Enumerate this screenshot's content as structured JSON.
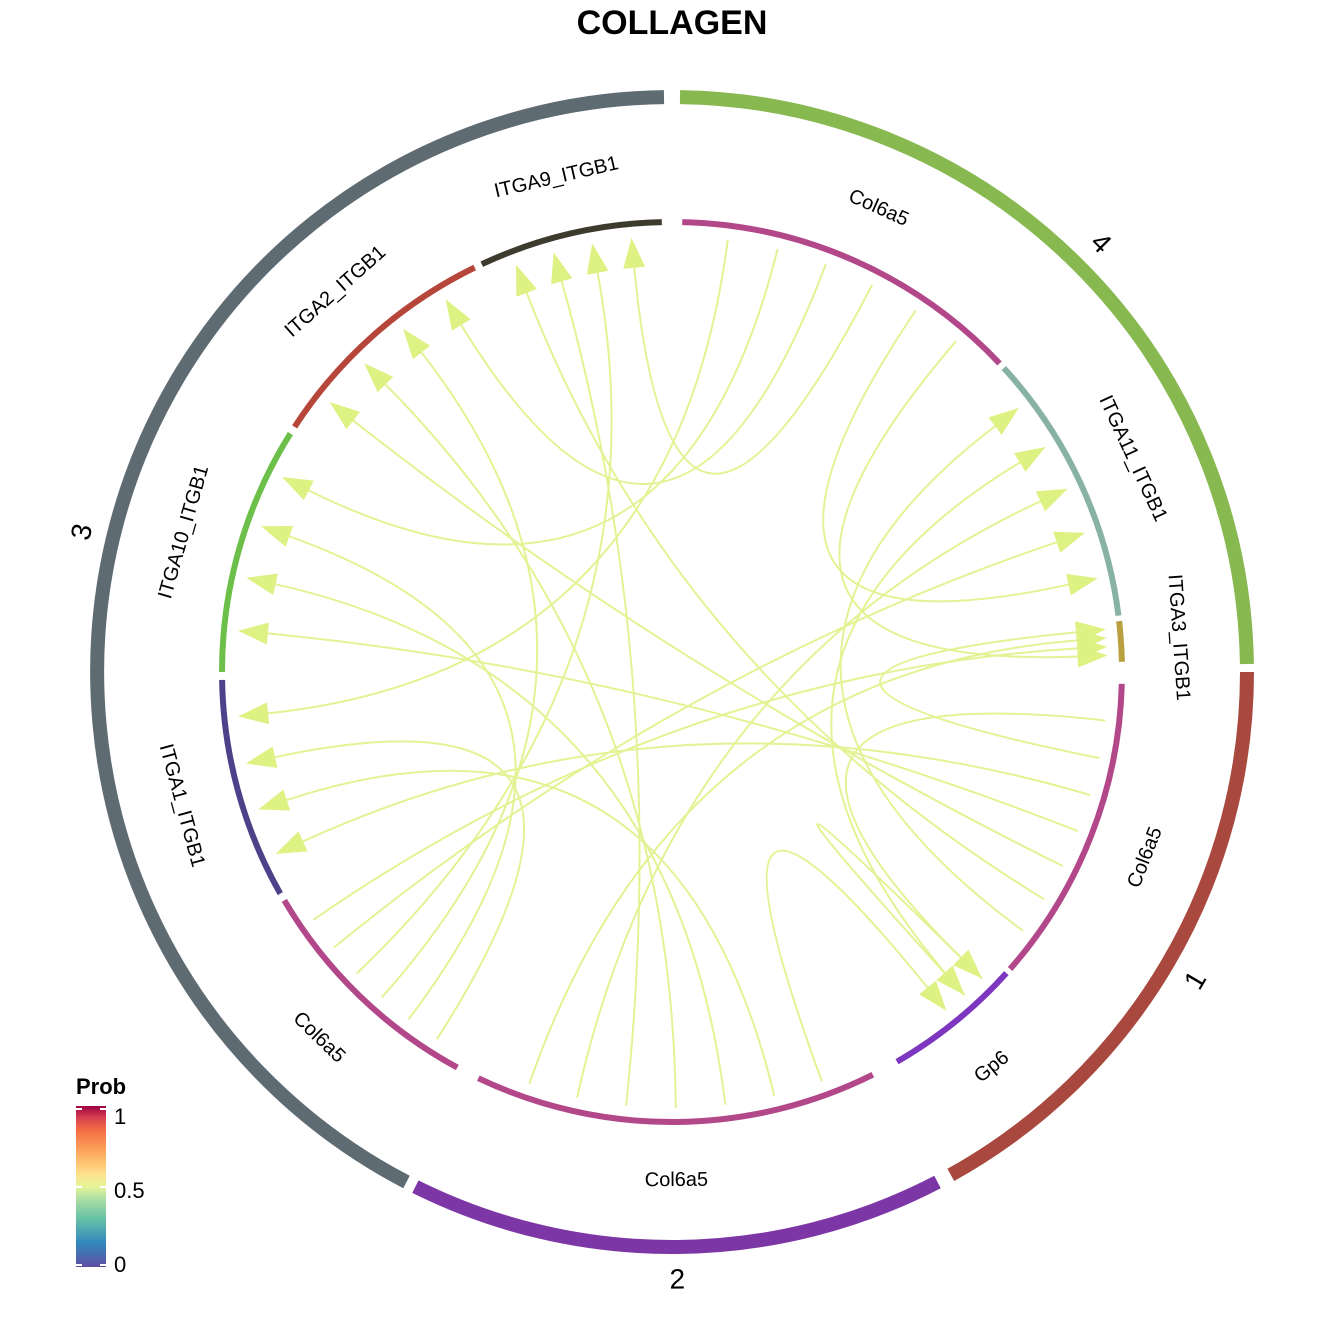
{
  "chart_data": {
    "type": "chord",
    "title": "COLLAGEN",
    "groups": [
      {
        "name": "1",
        "color": "#A9483E"
      },
      {
        "name": "2",
        "color": "#7D36A5"
      },
      {
        "name": "3",
        "color": "#5F6B72"
      },
      {
        "name": "4",
        "color": "#88B850"
      }
    ],
    "sectors": [
      {
        "id": "s1_col6a5",
        "label": "Col6a5",
        "group": "1",
        "color": "#B2478A"
      },
      {
        "id": "s1_gp6",
        "label": "Gp6",
        "group": "1",
        "color": "#7D36C0"
      },
      {
        "id": "s2_col6a5",
        "label": "Col6a5",
        "group": "2",
        "color": "#B2478A"
      },
      {
        "id": "s3_col6a5",
        "label": "Col6a5",
        "group": "3",
        "color": "#B2478A"
      },
      {
        "id": "s3_itga1",
        "label": "ITGA1_ITGB1",
        "group": "3",
        "color": "#4B4289"
      },
      {
        "id": "s3_itga10",
        "label": "ITGA10_ITGB1",
        "group": "3",
        "color": "#6CC04A"
      },
      {
        "id": "s3_itga2",
        "label": "ITGA2_ITGB1",
        "group": "3",
        "color": "#B7463A"
      },
      {
        "id": "s3_itga9",
        "label": "ITGA9_ITGB1",
        "group": "3",
        "color": "#3D3A2E"
      },
      {
        "id": "s4_col6a5",
        "label": "Col6a5",
        "group": "4",
        "color": "#B2478A"
      },
      {
        "id": "s4_itga11",
        "label": "ITGA11_ITGB1",
        "group": "4",
        "color": "#88B2A6"
      },
      {
        "id": "s4_itga3",
        "label": "ITGA3_ITGB1",
        "group": "4",
        "color": "#B8A040"
      }
    ],
    "links": [
      {
        "source": "s1_col6a5",
        "target": "s1_gp6",
        "prob": 0.55
      },
      {
        "source": "s1_col6a5",
        "target": "s4_itga3",
        "prob": 0.55
      },
      {
        "source": "s1_col6a5",
        "target": "s3_itga1",
        "prob": 0.55
      },
      {
        "source": "s1_col6a5",
        "target": "s3_itga10",
        "prob": 0.55
      },
      {
        "source": "s1_col6a5",
        "target": "s3_itga2",
        "prob": 0.55
      },
      {
        "source": "s1_col6a5",
        "target": "s3_itga9",
        "prob": 0.55
      },
      {
        "source": "s1_col6a5",
        "target": "s4_itga11",
        "prob": 0.55
      },
      {
        "source": "s1_gp6",
        "target": "s1_gp6",
        "prob": 0.55
      },
      {
        "source": "s1_gp6",
        "target": "s4_itga11",
        "prob": 0.55
      },
      {
        "source": "s2_col6a5",
        "target": "s1_gp6",
        "prob": 0.55
      },
      {
        "source": "s2_col6a5",
        "target": "s3_itga1",
        "prob": 0.55
      },
      {
        "source": "s2_col6a5",
        "target": "s3_itga10",
        "prob": 0.55
      },
      {
        "source": "s2_col6a5",
        "target": "s3_itga2",
        "prob": 0.55
      },
      {
        "source": "s2_col6a5",
        "target": "s3_itga9",
        "prob": 0.55
      },
      {
        "source": "s2_col6a5",
        "target": "s4_itga11",
        "prob": 0.55
      },
      {
        "source": "s2_col6a5",
        "target": "s4_itga3",
        "prob": 0.55
      },
      {
        "source": "s3_col6a5",
        "target": "s3_itga1",
        "prob": 0.55
      },
      {
        "source": "s3_col6a5",
        "target": "s3_itga10",
        "prob": 0.55
      },
      {
        "source": "s3_col6a5",
        "target": "s3_itga2",
        "prob": 0.55
      },
      {
        "source": "s3_col6a5",
        "target": "s3_itga9",
        "prob": 0.55
      },
      {
        "source": "s3_col6a5",
        "target": "s4_itga11",
        "prob": 0.55
      },
      {
        "source": "s3_col6a5",
        "target": "s4_itga3",
        "prob": 0.55
      },
      {
        "source": "s4_col6a5",
        "target": "s3_itga1",
        "prob": 0.55
      },
      {
        "source": "s4_col6a5",
        "target": "s3_itga10",
        "prob": 0.55
      },
      {
        "source": "s4_col6a5",
        "target": "s3_itga2",
        "prob": 0.55
      },
      {
        "source": "s4_col6a5",
        "target": "s3_itga9",
        "prob": 0.55
      },
      {
        "source": "s4_col6a5",
        "target": "s4_itga11",
        "prob": 0.55
      },
      {
        "source": "s4_col6a5",
        "target": "s4_itga3",
        "prob": 0.55
      }
    ],
    "legend": {
      "title": "Prob",
      "ticks": [
        "1",
        "0.5",
        "0"
      ],
      "range": [
        0,
        1
      ],
      "placement": "bottom-left"
    },
    "link_color": "#E2F394",
    "arrow_color": "#DDF283"
  }
}
